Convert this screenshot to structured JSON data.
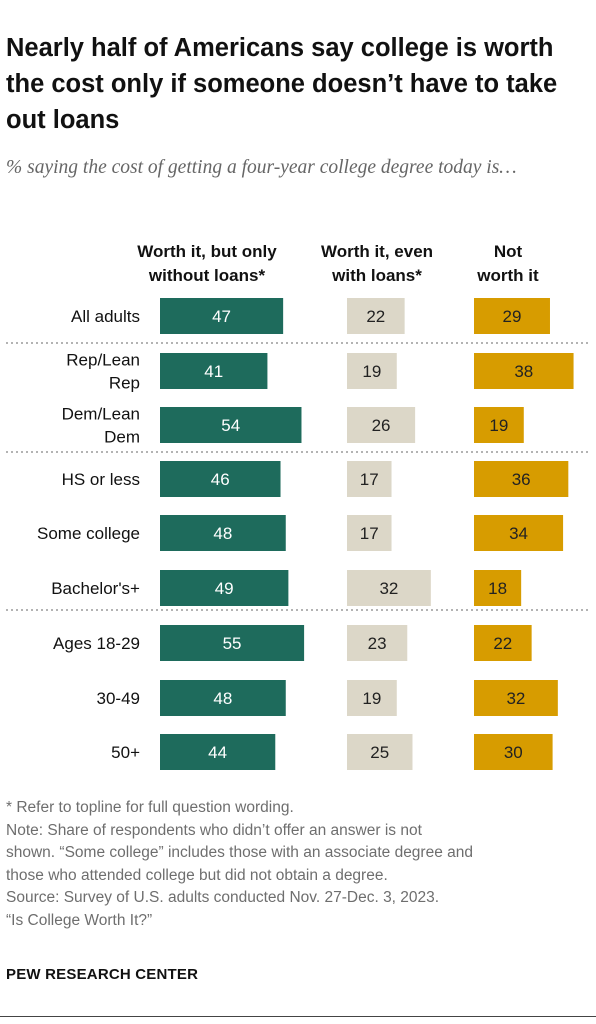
{
  "title": "Nearly half of Americans say college is worth the cost only if someone doesn’t have to take out loans",
  "subtitle": "% saying the cost of getting a four-year college degree today is…",
  "colors": {
    "worth_no_loans": "#1e6b5c",
    "worth_with_loans": "#dcd7c8",
    "not_worth": "#d79c00",
    "label_on_dark": "#ffffff",
    "label_on_light": "#222222"
  },
  "chart_data": {
    "type": "bar",
    "orientation": "horizontal",
    "layout": "three side-by-side bar columns",
    "series": [
      {
        "name": "Worth it, but only without loans*",
        "header_lines": [
          "Worth it, but only",
          "without loans*"
        ],
        "values": [
          47,
          41,
          54,
          46,
          48,
          49,
          55,
          48,
          44
        ]
      },
      {
        "name": "Worth it, even with loans*",
        "header_lines": [
          "Worth it, even",
          "with loans*"
        ],
        "values": [
          22,
          19,
          26,
          17,
          17,
          32,
          23,
          19,
          25
        ]
      },
      {
        "name": "Not worth it",
        "header_lines": [
          "Not",
          "worth it"
        ],
        "values": [
          29,
          38,
          19,
          36,
          34,
          18,
          22,
          32,
          30
        ]
      }
    ],
    "categories": [
      {
        "label": "All adults",
        "lines": [
          "All adults"
        ]
      },
      {
        "label": "Rep/Lean Rep",
        "lines": [
          "Rep/Lean",
          "Rep"
        ]
      },
      {
        "label": "Dem/Lean Dem",
        "lines": [
          "Dem/Lean",
          "Dem"
        ]
      },
      {
        "label": "HS or less",
        "lines": [
          "HS or less"
        ]
      },
      {
        "label": "Some college",
        "lines": [
          "Some college"
        ]
      },
      {
        "label": "Bachelor's+",
        "lines": [
          "Bachelor's+"
        ]
      },
      {
        "label": "Ages 18-29",
        "lines": [
          "Ages 18-29"
        ]
      },
      {
        "label": "30-49",
        "lines": [
          "30-49"
        ]
      },
      {
        "label": "50+",
        "lines": [
          "50+"
        ]
      }
    ],
    "group_dividers_after": [
      0,
      2,
      5
    ],
    "unit": "%",
    "grid": false,
    "legend": "column headers"
  },
  "notes": [
    "* Refer to topline for full question wording.",
    "Note: Share of respondents who didn’t offer an answer is not",
    "shown. “Some college” includes those with an associate degree and",
    "those who attended college but did not obtain a degree.",
    "Source: Survey of U.S. adults conducted Nov. 27-Dec. 3, 2023.",
    "“Is College Worth It?”"
  ],
  "brand": "PEW RESEARCH CENTER"
}
